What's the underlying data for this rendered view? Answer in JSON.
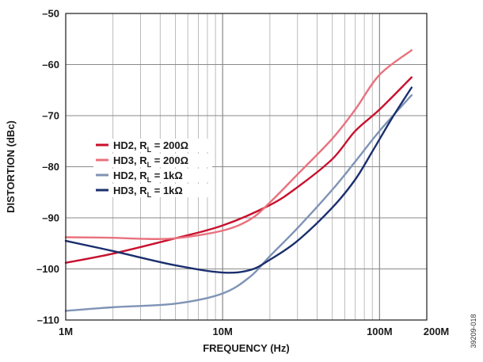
{
  "chart_data": {
    "type": "line",
    "xlabel": "FREQUENCY (Hz)",
    "ylabel": "DISTORTION (dBc)",
    "x_scale": "log",
    "xlim": [
      1000000,
      200000000
    ],
    "ylim": [
      -110,
      -50
    ],
    "grid": true,
    "x_ticks": [
      {
        "value": 1000000,
        "label": "1M"
      },
      {
        "value": 10000000,
        "label": "10M"
      },
      {
        "value": 100000000,
        "label": "100M"
      },
      {
        "value": 200000000,
        "label": "200M"
      }
    ],
    "y_ticks": [
      {
        "value": -50,
        "label": "–50"
      },
      {
        "value": -60,
        "label": "–60"
      },
      {
        "value": -70,
        "label": "–70"
      },
      {
        "value": -80,
        "label": "–80"
      },
      {
        "value": -90,
        "label": "–90"
      },
      {
        "value": -100,
        "label": "–100"
      },
      {
        "value": -110,
        "label": "–110"
      }
    ],
    "legend_position": "left-middle",
    "series": [
      {
        "name": "HD2, RL = 200Ω",
        "label_main": "HD2, R",
        "label_sub": "L",
        "label_tail": " = 200Ω",
        "color": "#c8102e",
        "points": [
          [
            1000000,
            -98.8
          ],
          [
            2000000,
            -97.0
          ],
          [
            5000000,
            -94.0
          ],
          [
            10000000,
            -91.5
          ],
          [
            20000000,
            -87.5
          ],
          [
            30000000,
            -84.0
          ],
          [
            50000000,
            -78.5
          ],
          [
            70000000,
            -73.0
          ],
          [
            100000000,
            -68.8
          ],
          [
            160000000,
            -62.5
          ]
        ]
      },
      {
        "name": "HD3, RL = 200Ω",
        "label_main": "HD3, R",
        "label_sub": "L",
        "label_tail": " = 200Ω",
        "color": "#e8727e",
        "points": [
          [
            1000000,
            -93.8
          ],
          [
            2000000,
            -93.9
          ],
          [
            3000000,
            -94.1
          ],
          [
            5000000,
            -94.0
          ],
          [
            10000000,
            -92.5
          ],
          [
            15000000,
            -90.3
          ],
          [
            20000000,
            -87.0
          ],
          [
            30000000,
            -81.5
          ],
          [
            50000000,
            -74.5
          ],
          [
            70000000,
            -68.8
          ],
          [
            100000000,
            -62.0
          ],
          [
            160000000,
            -57.2
          ]
        ]
      },
      {
        "name": "HD2, RL = 1kΩ",
        "label_main": "HD2, R",
        "label_sub": "L",
        "label_tail": " = 1kΩ",
        "color": "#7f93b6",
        "points": [
          [
            1000000,
            -108.2
          ],
          [
            2000000,
            -107.5
          ],
          [
            5000000,
            -106.8
          ],
          [
            10000000,
            -104.8
          ],
          [
            15000000,
            -101.5
          ],
          [
            20000000,
            -97.5
          ],
          [
            30000000,
            -92.0
          ],
          [
            50000000,
            -84.5
          ],
          [
            70000000,
            -79.0
          ],
          [
            100000000,
            -73.0
          ],
          [
            160000000,
            -66.0
          ]
        ]
      },
      {
        "name": "HD3, RL = 1kΩ",
        "label_main": "HD3, R",
        "label_sub": "L",
        "label_tail": " = 1kΩ",
        "color": "#1a2f6e",
        "points": [
          [
            1000000,
            -94.5
          ],
          [
            2000000,
            -96.5
          ],
          [
            5000000,
            -99.3
          ],
          [
            10000000,
            -100.7
          ],
          [
            15000000,
            -100.2
          ],
          [
            20000000,
            -98.2
          ],
          [
            30000000,
            -94.5
          ],
          [
            50000000,
            -88.0
          ],
          [
            70000000,
            -82.5
          ],
          [
            90000000,
            -77.0
          ],
          [
            120000000,
            -70.5
          ],
          [
            160000000,
            -64.5
          ]
        ]
      }
    ]
  },
  "figure_id": "39209-018"
}
